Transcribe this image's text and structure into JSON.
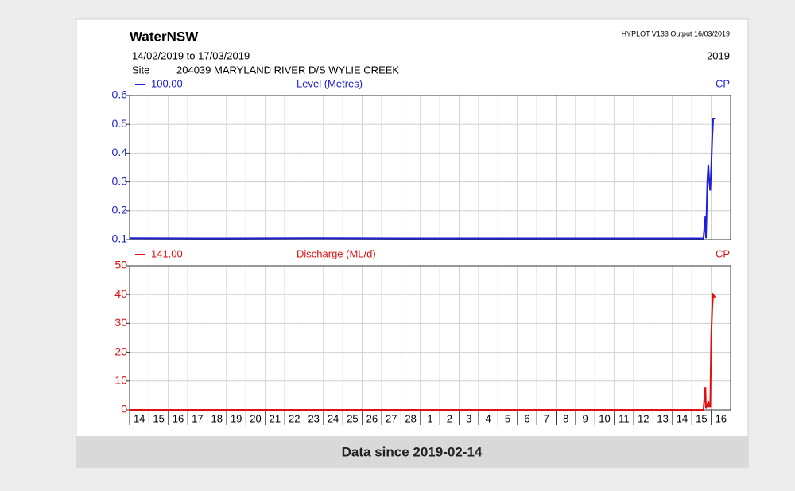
{
  "header": {
    "title": "WaterNSW",
    "program": "HYPLOT V133  Output 16/03/2019",
    "period": "14/02/2019  to  17/03/2019",
    "year": "2019",
    "site_label": "Site",
    "site": "204039  MARYLAND RIVER D/S WYLIE CREEK"
  },
  "caption": "Data since 2019-02-14",
  "chart_data": [
    {
      "type": "line",
      "legend_value": "100.00",
      "corner_label": "CP",
      "grid": true,
      "xlim": [
        0,
        31
      ],
      "ylim": [
        0.1,
        0.6
      ],
      "yticks": [
        0.1,
        0.2,
        0.3,
        0.4,
        0.5,
        0.6
      ],
      "x": [
        0,
        5,
        10,
        15,
        20,
        25,
        29.6,
        29.7,
        29.73,
        29.8,
        29.85,
        29.9,
        29.95,
        30.0,
        30.05,
        30.1,
        30.2
      ],
      "series": [
        {
          "name": "Level (Metres)",
          "color": "#1f1fd6",
          "values": [
            0.105,
            0.104,
            0.105,
            0.104,
            0.104,
            0.104,
            0.104,
            0.18,
            0.105,
            0.3,
            0.36,
            0.3,
            0.27,
            0.35,
            0.45,
            0.52,
            0.52
          ]
        }
      ]
    },
    {
      "type": "line",
      "legend_value": "141.00",
      "corner_label": "CP",
      "grid": true,
      "xlim": [
        0,
        31
      ],
      "ylim": [
        0,
        50
      ],
      "yticks": [
        0,
        10,
        20,
        30,
        40,
        50
      ],
      "x": [
        0,
        5,
        10,
        15,
        20,
        25,
        29.6,
        29.7,
        29.73,
        29.8,
        29.85,
        29.9,
        29.95,
        30.0,
        30.05,
        30.1,
        30.2
      ],
      "xticks": [
        {
          "value": 0,
          "label": "14"
        },
        {
          "value": 1,
          "label": "15"
        },
        {
          "value": 2,
          "label": "16"
        },
        {
          "value": 3,
          "label": "17"
        },
        {
          "value": 4,
          "label": "18"
        },
        {
          "value": 5,
          "label": "19"
        },
        {
          "value": 6,
          "label": "20"
        },
        {
          "value": 7,
          "label": "21"
        },
        {
          "value": 8,
          "label": "22"
        },
        {
          "value": 9,
          "label": "23"
        },
        {
          "value": 10,
          "label": "24"
        },
        {
          "value": 11,
          "label": "25"
        },
        {
          "value": 12,
          "label": "26"
        },
        {
          "value": 13,
          "label": "27"
        },
        {
          "value": 14,
          "label": "28"
        },
        {
          "value": 15,
          "label": "1"
        },
        {
          "value": 16,
          "label": "2"
        },
        {
          "value": 17,
          "label": "3"
        },
        {
          "value": 18,
          "label": "4"
        },
        {
          "value": 19,
          "label": "5"
        },
        {
          "value": 20,
          "label": "6"
        },
        {
          "value": 21,
          "label": "7"
        },
        {
          "value": 22,
          "label": "8"
        },
        {
          "value": 23,
          "label": "9"
        },
        {
          "value": 24,
          "label": "10"
        },
        {
          "value": 25,
          "label": "11"
        },
        {
          "value": 26,
          "label": "12"
        },
        {
          "value": 27,
          "label": "13"
        },
        {
          "value": 28,
          "label": "14"
        },
        {
          "value": 29,
          "label": "15"
        },
        {
          "value": 30,
          "label": "16"
        }
      ],
      "series": [
        {
          "name": "Discharge (ML/d)",
          "color": "#e01010",
          "values": [
            0,
            0,
            0,
            0,
            0,
            0,
            0,
            8,
            0.5,
            1.5,
            3,
            1,
            1,
            25,
            35,
            40,
            39
          ]
        }
      ]
    }
  ]
}
